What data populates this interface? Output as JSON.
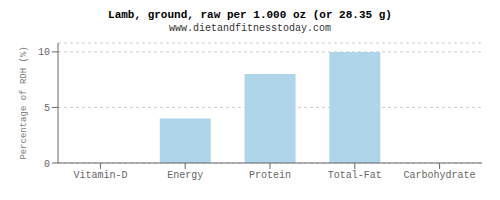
{
  "chart_data": {
    "type": "bar",
    "title": "Lamb, ground, raw per 1.000 oz (or 28.35 g)",
    "subtitle": "www.dietandfitnesstoday.com",
    "ylabel": "Percentage of RDH (%)",
    "categories": [
      "Vitamin-D",
      "Energy",
      "Protein",
      "Total-Fat",
      "Carbohydrate"
    ],
    "values": [
      0.0,
      4.0,
      8.0,
      10.0,
      0.0
    ],
    "color": "#aed6e8",
    "ylim": [
      0,
      10.8
    ],
    "yticks": [
      0,
      5,
      10
    ],
    "grid": true
  }
}
